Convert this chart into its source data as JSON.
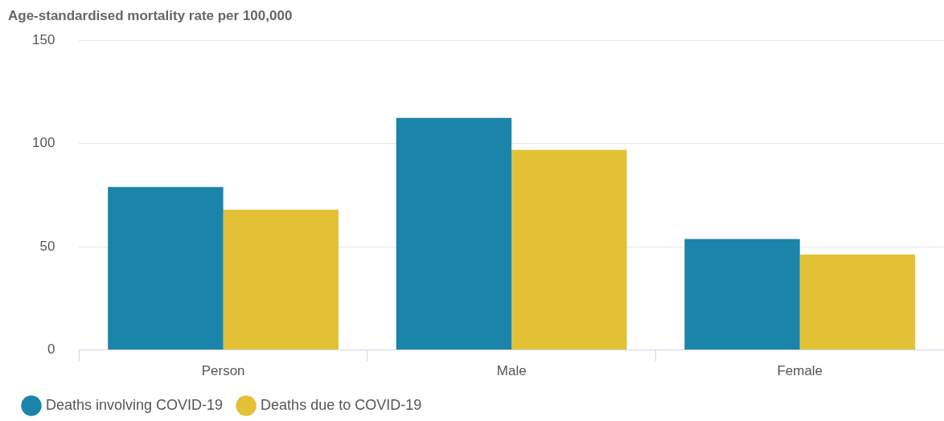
{
  "chart_data": {
    "type": "bar",
    "ylabel": "Age-standardised mortality rate per 100,000",
    "categories": [
      "Person",
      "Male",
      "Female"
    ],
    "series": [
      {
        "name": "Deaths involving COVID-19",
        "color": "#1b84ab",
        "values": [
          79,
          112.5,
          53.8
        ]
      },
      {
        "name": "Deaths due to COVID-19",
        "color": "#e3c136",
        "values": [
          68,
          97,
          46.3
        ]
      }
    ],
    "ylim": [
      0,
      150
    ],
    "yticks": [
      0,
      50,
      100,
      150
    ],
    "grid": "y",
    "legend": "bottom left"
  }
}
